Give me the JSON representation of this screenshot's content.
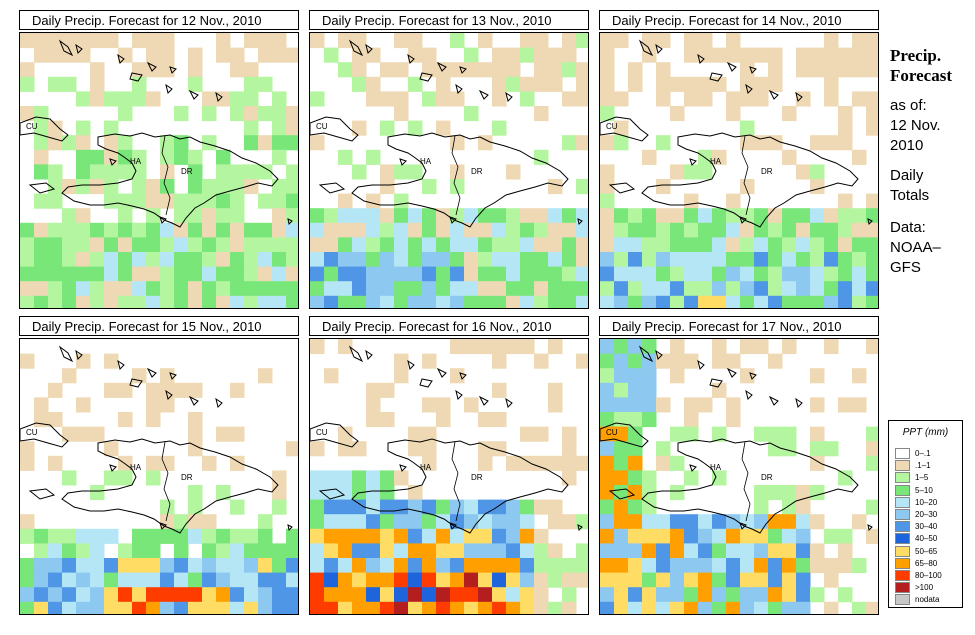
{
  "panels": [
    {
      "title": "Daily Precip. Forecast for  12 Nov., 2010"
    },
    {
      "title": "Daily Precip. Forecast for  13 Nov., 2010"
    },
    {
      "title": "Daily Precip. Forecast for  14 Nov., 2010"
    },
    {
      "title": "Daily Precip. Forecast for  15 Nov., 2010"
    },
    {
      "title": "Daily Precip. Forecast for  16 Nov., 2010"
    },
    {
      "title": "Daily Precip. Forecast for  17 Nov., 2010"
    }
  ],
  "map_labels": {
    "cu": "CU",
    "ha": "HA",
    "dr": "DR"
  },
  "sidebar": {
    "heading_1": "Precip.",
    "heading_2": "Forecast",
    "asof_1": "as of:",
    "asof_2": "12 Nov.",
    "asof_3": "2010",
    "totals_1": "Daily",
    "totals_2": "Totals",
    "data_1": "Data:",
    "data_2": "NOAA–",
    "data_3": "GFS"
  },
  "legend": {
    "title": "PPT (mm)",
    "items": [
      {
        "label": "0–.1",
        "color": "#ffffff"
      },
      {
        "label": ".1–1",
        "color": "#efd9b4"
      },
      {
        "label": "1–5",
        "color": "#b4f5a0"
      },
      {
        "label": "5–10",
        "color": "#78e678"
      },
      {
        "label": "10–20",
        "color": "#b4e6f5"
      },
      {
        "label": "20–30",
        "color": "#8cc8f0"
      },
      {
        "label": "30–40",
        "color": "#5096e6"
      },
      {
        "label": "40–50",
        "color": "#1e64dc"
      },
      {
        "label": "50–65",
        "color": "#ffdc64"
      },
      {
        "label": "65–80",
        "color": "#ffa000"
      },
      {
        "label": "80–100",
        "color": "#ff3c00"
      },
      {
        "label": ">100",
        "color": "#b41e1e"
      },
      {
        "label": "nodata",
        "color": "#c8c8c8"
      }
    ]
  }
}
